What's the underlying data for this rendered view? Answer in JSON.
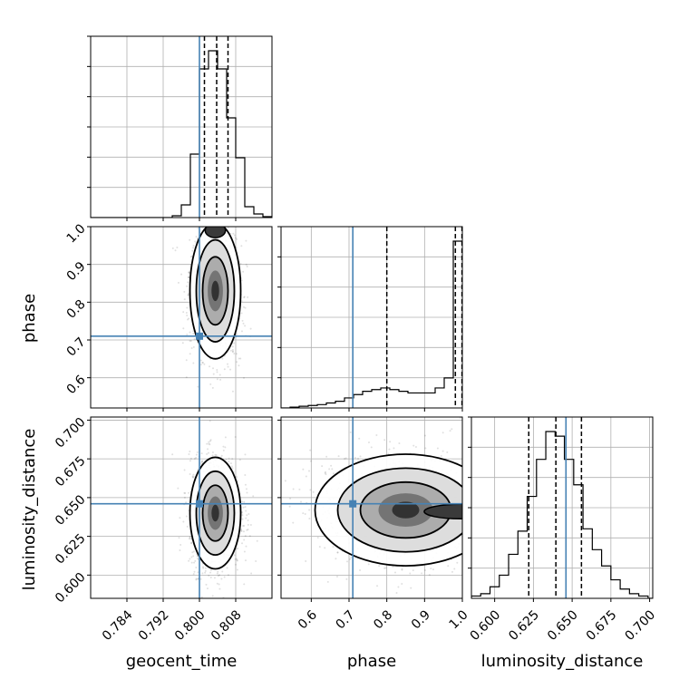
{
  "chart_data": {
    "type": "corner",
    "parameters": [
      "geocent_time",
      "phase",
      "luminosity_distance"
    ],
    "truths": {
      "geocent_time": 0.8,
      "phase": 0.71,
      "luminosity_distance": 0.646
    },
    "truth_color": "#4682b4",
    "grid": true,
    "axes": {
      "geocent_time": {
        "xlim": [
          0.776,
          0.816
        ],
        "ticks": [
          0.784,
          0.792,
          0.8,
          0.808
        ],
        "tick_labels": [
          "0.784",
          "0.792",
          "0.800",
          "0.808"
        ]
      },
      "phase": {
        "lim": [
          0.52,
          1.0
        ],
        "x_ticks": [
          0.6,
          0.7,
          0.8,
          0.9,
          1.0
        ],
        "x_tick_labels": [
          "0.6",
          "0.7",
          "0.8",
          "0.9",
          "1.0"
        ],
        "y_ticks": [
          0.6,
          0.7,
          0.8,
          0.9,
          1.0
        ],
        "y_tick_labels": [
          "0.6",
          "0.7",
          "0.8",
          "0.9",
          "1.0"
        ]
      },
      "luminosity_distance": {
        "lim": [
          0.585,
          0.702
        ],
        "x_ticks": [
          0.6,
          0.625,
          0.65,
          0.675,
          0.7
        ],
        "x_tick_labels": [
          "0.600",
          "0.625",
          "0.650",
          "0.675",
          "0.700"
        ],
        "y_ticks": [
          0.6,
          0.625,
          0.65,
          0.675,
          0.7
        ],
        "y_tick_labels": [
          "0.600",
          "0.625",
          "0.650",
          "0.675",
          "0.700"
        ]
      }
    },
    "histograms": {
      "geocent_time": {
        "bin_edges": [
          0.776,
          0.778,
          0.78,
          0.782,
          0.784,
          0.786,
          0.788,
          0.79,
          0.792,
          0.794,
          0.796,
          0.798,
          0.8,
          0.802,
          0.804,
          0.806,
          0.808,
          0.81,
          0.812,
          0.814,
          0.816
        ],
        "counts": [
          0,
          0,
          0,
          0,
          0,
          0,
          0,
          0,
          0,
          0.01,
          0.07,
          0.35,
          0.82,
          0.92,
          0.82,
          0.55,
          0.33,
          0.06,
          0.02,
          0.005
        ],
        "quantiles": [
          0.8011,
          0.8038,
          0.8063
        ]
      },
      "phase": {
        "bin_edges": [
          0.52,
          0.544,
          0.568,
          0.592,
          0.616,
          0.64,
          0.664,
          0.688,
          0.712,
          0.736,
          0.76,
          0.784,
          0.808,
          0.832,
          0.856,
          0.88,
          0.904,
          0.928,
          0.952,
          0.976,
          1.0
        ],
        "counts": [
          0,
          0.005,
          0.01,
          0.015,
          0.02,
          0.03,
          0.04,
          0.06,
          0.08,
          0.1,
          0.11,
          0.12,
          0.11,
          0.1,
          0.09,
          0.09,
          0.09,
          0.12,
          0.18,
          1.0
        ],
        "quantiles": [
          0.8,
          0.9815,
          0.999
        ]
      },
      "luminosity_distance": {
        "bin_edges": [
          0.585,
          0.591,
          0.597,
          0.603,
          0.609,
          0.615,
          0.621,
          0.627,
          0.633,
          0.639,
          0.645,
          0.651,
          0.657,
          0.663,
          0.669,
          0.675,
          0.681,
          0.687,
          0.693,
          0.699,
          0.702
        ],
        "counts": [
          0.01,
          0.02,
          0.05,
          0.1,
          0.19,
          0.29,
          0.44,
          0.6,
          0.72,
          0.7,
          0.6,
          0.49,
          0.3,
          0.21,
          0.14,
          0.08,
          0.04,
          0.02,
          0.01,
          0
        ],
        "quantiles": [
          0.622,
          0.6395,
          0.656
        ]
      }
    },
    "pairs": [
      {
        "x": "geocent_time",
        "y": "phase",
        "mean": [
          0.8035,
          0.83
        ],
        "std": [
          0.0028,
          0.09
        ],
        "peak": [
          0.8035,
          0.99
        ]
      },
      {
        "x": "geocent_time",
        "y": "luminosity_distance",
        "mean": [
          0.8035,
          0.64
        ],
        "std": [
          0.0028,
          0.018
        ]
      },
      {
        "x": "phase",
        "y": "luminosity_distance",
        "mean": [
          0.85,
          0.642
        ],
        "std": [
          0.12,
          0.018
        ],
        "peak": [
          0.995,
          0.641
        ]
      }
    ]
  }
}
